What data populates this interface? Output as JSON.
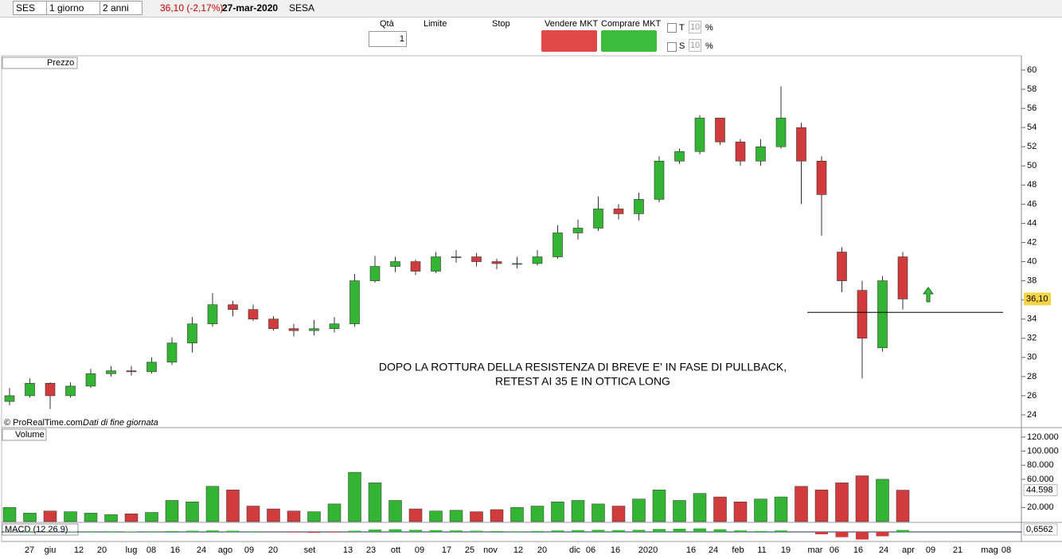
{
  "toolbar": {
    "symbol": "SES",
    "interval": "1 giorno",
    "period": "2 anni",
    "last": "36,10 (-2,17%)",
    "date": "27-mar-2020",
    "name": "SESA"
  },
  "order_bar": {
    "qty_label": "Qtà",
    "qty": "1",
    "limit": "Limite",
    "stop": "Stop",
    "sell": "Vendere MKT",
    "buy": "Comprare MKT",
    "t_label": "T",
    "t_value": "10",
    "t_pct": "%",
    "s_label": "S",
    "s_value": "10",
    "s_pct": "%"
  },
  "chart_data": {
    "type": "candlestick",
    "panel_label": "Prezzo",
    "credit": "© ProRealTime.com",
    "credit_note": "Dati di fine giornata",
    "annotation": [
      "DOPO LA ROTTURA DELLA RESISTENZA DI BREVE E' IN FASE DI PULLBACK,",
      "RETEST AI 35 E IN OTTICA LONG"
    ],
    "support_level": 34.7,
    "x_labels": [
      "27",
      "giu",
      "12",
      "20",
      "lug",
      "08",
      "16",
      "24",
      "ago",
      "09",
      "20",
      "set",
      "13",
      "23",
      "ott",
      "09",
      "17",
      "25",
      "nov",
      "12",
      "20",
      "dic",
      "06",
      "16",
      "2020",
      "16",
      "24",
      "feb",
      "11",
      "19",
      "mar",
      "06",
      "16",
      "24",
      "apr",
      "09",
      "21",
      "mag",
      "08"
    ],
    "open": [
      25.4,
      26,
      27.3,
      26,
      27,
      28.3,
      28.6,
      28.5,
      29.5,
      31.5,
      33.5,
      35.5,
      35,
      34,
      33,
      32.8,
      33,
      33.5,
      38,
      39.5,
      40,
      39,
      40.5,
      40.5,
      40,
      39.8,
      39.8,
      40.5,
      43,
      43.5,
      45.5,
      45,
      46.5,
      50.5,
      51.5,
      55,
      52.5,
      50.5,
      52,
      54,
      50.5,
      41,
      37,
      31,
      40.5
    ],
    "high": [
      26.8,
      27.8,
      27.4,
      27.4,
      28.8,
      29.1,
      29.1,
      30,
      32.1,
      34.2,
      36.7,
      35.9,
      35.5,
      34.3,
      33.5,
      33.9,
      34.2,
      38.7,
      40.6,
      40.5,
      40.2,
      41,
      41.2,
      40.9,
      40.3,
      40.5,
      41.2,
      43.8,
      44.4,
      46.8,
      46,
      47.2,
      51,
      51.8,
      55.3,
      55,
      52.8,
      52.8,
      58.3,
      54.5,
      51,
      41.5,
      38,
      38.5,
      41
    ],
    "low": [
      25,
      25.8,
      24.6,
      25.8,
      26.8,
      28,
      28.1,
      28.3,
      29.2,
      30.5,
      33.2,
      34.3,
      33.8,
      32.8,
      32.2,
      32.3,
      32.6,
      33.2,
      37.8,
      38.9,
      38.6,
      38.8,
      39.9,
      39.5,
      39.2,
      39.3,
      39.6,
      40.3,
      42.3,
      43.2,
      44.4,
      44.3,
      46.2,
      50.2,
      51.2,
      52.2,
      50,
      50,
      51.8,
      46,
      42.7,
      36.8,
      27.8,
      30.6,
      35
    ],
    "close": [
      26,
      27.3,
      26,
      27,
      28.3,
      28.6,
      28.5,
      29.5,
      31.5,
      33.5,
      35.5,
      35,
      34,
      33,
      32.8,
      33,
      33.5,
      38,
      39.5,
      40,
      39,
      40.5,
      40.5,
      40,
      39.8,
      39.8,
      40.5,
      43,
      43.5,
      45.5,
      45,
      46.5,
      50.5,
      51.5,
      55,
      52.5,
      50.5,
      52,
      55,
      50.5,
      47,
      38,
      32,
      38,
      36.1
    ],
    "last_label": "36,10",
    "ylim": [
      23,
      61
    ],
    "yticks": [
      24,
      26,
      28,
      30,
      32,
      34,
      36,
      38,
      40,
      42,
      44,
      46,
      48,
      50,
      52,
      54,
      56,
      58,
      60
    ],
    "up_color": "#33b533",
    "down_color": "#d23b3b",
    "volume": {
      "label": "Volume",
      "values": [
        20000,
        12000,
        15000,
        14000,
        12000,
        10000,
        11000,
        13000,
        30000,
        28000,
        50000,
        45000,
        22000,
        18000,
        15000,
        14000,
        25000,
        70000,
        55000,
        30000,
        18000,
        15000,
        16000,
        14000,
        17000,
        20000,
        22000,
        28000,
        30000,
        25000,
        22000,
        32000,
        45000,
        30000,
        40000,
        35000,
        28000,
        32000,
        35000,
        50000,
        45000,
        55000,
        65000,
        60000,
        44598
      ],
      "last_label": "44.598",
      "ylim": [
        0,
        130000
      ],
      "yticks": [
        {
          "value": 20000,
          "label": "20.000"
        },
        {
          "value": 60000,
          "label": "60.000"
        },
        {
          "value": 80000,
          "label": "80.000"
        },
        {
          "value": 100000,
          "label": "100.000"
        },
        {
          "value": 120000,
          "label": "120.000"
        }
      ]
    },
    "macd": {
      "label": "MACD (12 26 9)",
      "values": [
        0.1,
        0.2,
        0.1,
        0.15,
        0.2,
        0.2,
        0.15,
        0.2,
        0.3,
        0.4,
        0.5,
        0.4,
        0.2,
        0,
        -0.2,
        -0.3,
        -0.2,
        0.4,
        0.8,
        0.9,
        0.7,
        0.6,
        0.5,
        0.4,
        0.3,
        0.2,
        0.3,
        0.5,
        0.6,
        0.7,
        0.6,
        0.7,
        1,
        1.1,
        1.2,
        0.9,
        0.5,
        0.3,
        0.5,
        0,
        -0.8,
        -1.8,
        -2.6,
        -1.5,
        0.6562
      ],
      "last_label": "0,6562",
      "ylim": [
        -3,
        3
      ]
    }
  }
}
